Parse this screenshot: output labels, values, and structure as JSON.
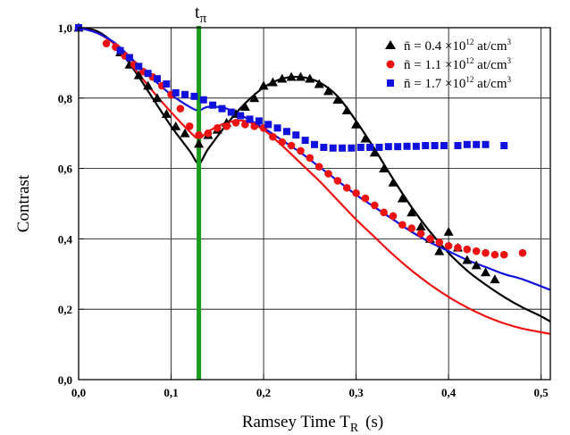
{
  "chart_data": {
    "type": "scatter",
    "xlabel": "Ramsey Time T",
    "xlabel_sub": "R",
    "xlabel_unit": "(s)",
    "ylabel": "Contrast",
    "xlim": [
      0,
      0.51
    ],
    "ylim": [
      0,
      1.0
    ],
    "x_ticks": [
      0.0,
      0.1,
      0.2,
      0.3,
      0.4,
      0.5
    ],
    "x_tick_labels": [
      "0,0",
      "0,1",
      "0,2",
      "0,3",
      "0,4",
      "0,5"
    ],
    "y_ticks": [
      0.0,
      0.2,
      0.4,
      0.6,
      0.8,
      1.0
    ],
    "y_tick_labels": [
      "0,0",
      "0,2",
      "0,4",
      "0,6",
      "0,8",
      "1,0"
    ],
    "grid": true,
    "legend_position": "top-right",
    "annotation": {
      "label": "t",
      "label_sub": "π",
      "x": 0.13,
      "color": "#1a9e1a"
    },
    "series": [
      {
        "name": "n̄ = 0.4 ×10",
        "name_sup": "12",
        "name_unit": " at/cm",
        "name_unit_sup": "3",
        "color": "#000000",
        "marker": "triangle",
        "points": [
          [
            0.0,
            1.0
          ],
          [
            0.045,
            0.93
          ],
          [
            0.055,
            0.895
          ],
          [
            0.065,
            0.865
          ],
          [
            0.075,
            0.835
          ],
          [
            0.085,
            0.8
          ],
          [
            0.095,
            0.755
          ],
          [
            0.105,
            0.72
          ],
          [
            0.115,
            0.7
          ],
          [
            0.13,
            0.67
          ],
          [
            0.14,
            0.695
          ],
          [
            0.15,
            0.71
          ],
          [
            0.16,
            0.73
          ],
          [
            0.17,
            0.755
          ],
          [
            0.18,
            0.775
          ],
          [
            0.19,
            0.8
          ],
          [
            0.2,
            0.835
          ],
          [
            0.21,
            0.845
          ],
          [
            0.22,
            0.855
          ],
          [
            0.23,
            0.86
          ],
          [
            0.24,
            0.86
          ],
          [
            0.25,
            0.855
          ],
          [
            0.26,
            0.84
          ],
          [
            0.27,
            0.82
          ],
          [
            0.28,
            0.795
          ],
          [
            0.29,
            0.765
          ],
          [
            0.3,
            0.725
          ],
          [
            0.31,
            0.685
          ],
          [
            0.32,
            0.645
          ],
          [
            0.33,
            0.6
          ],
          [
            0.34,
            0.56
          ],
          [
            0.35,
            0.515
          ],
          [
            0.36,
            0.475
          ],
          [
            0.37,
            0.435
          ],
          [
            0.38,
            0.4
          ],
          [
            0.39,
            0.365
          ],
          [
            0.4,
            0.42
          ],
          [
            0.41,
            0.375
          ],
          [
            0.42,
            0.34
          ],
          [
            0.43,
            0.325
          ],
          [
            0.44,
            0.305
          ],
          [
            0.45,
            0.285
          ]
        ],
        "fit": [
          [
            0.0,
            1.0
          ],
          [
            0.02,
            0.99
          ],
          [
            0.04,
            0.95
          ],
          [
            0.06,
            0.88
          ],
          [
            0.08,
            0.8
          ],
          [
            0.1,
            0.72
          ],
          [
            0.12,
            0.65
          ],
          [
            0.13,
            0.615
          ],
          [
            0.14,
            0.655
          ],
          [
            0.16,
            0.725
          ],
          [
            0.18,
            0.785
          ],
          [
            0.2,
            0.83
          ],
          [
            0.22,
            0.855
          ],
          [
            0.24,
            0.86
          ],
          [
            0.26,
            0.845
          ],
          [
            0.28,
            0.805
          ],
          [
            0.3,
            0.735
          ],
          [
            0.32,
            0.655
          ],
          [
            0.34,
            0.57
          ],
          [
            0.36,
            0.49
          ],
          [
            0.38,
            0.42
          ],
          [
            0.4,
            0.36
          ],
          [
            0.42,
            0.31
          ],
          [
            0.44,
            0.27
          ],
          [
            0.46,
            0.235
          ],
          [
            0.48,
            0.205
          ],
          [
            0.5,
            0.18
          ],
          [
            0.51,
            0.165
          ]
        ]
      },
      {
        "name": "n̄ = 1.1 ×10",
        "name_sup": "12",
        "name_unit": " at/cm",
        "name_unit_sup": "3",
        "color": "#ee1111",
        "marker": "circle",
        "points": [
          [
            0.0,
            1.0
          ],
          [
            0.03,
            0.955
          ],
          [
            0.04,
            0.945
          ],
          [
            0.05,
            0.92
          ],
          [
            0.06,
            0.895
          ],
          [
            0.07,
            0.875
          ],
          [
            0.08,
            0.86
          ],
          [
            0.09,
            0.835
          ],
          [
            0.1,
            0.81
          ],
          [
            0.11,
            0.77
          ],
          [
            0.12,
            0.72
          ],
          [
            0.13,
            0.695
          ],
          [
            0.14,
            0.7
          ],
          [
            0.15,
            0.715
          ],
          [
            0.16,
            0.72
          ],
          [
            0.17,
            0.73
          ],
          [
            0.18,
            0.725
          ],
          [
            0.19,
            0.72
          ],
          [
            0.2,
            0.715
          ],
          [
            0.21,
            0.69
          ],
          [
            0.22,
            0.675
          ],
          [
            0.23,
            0.665
          ],
          [
            0.24,
            0.65
          ],
          [
            0.25,
            0.63
          ],
          [
            0.26,
            0.605
          ],
          [
            0.27,
            0.585
          ],
          [
            0.28,
            0.565
          ],
          [
            0.29,
            0.545
          ],
          [
            0.3,
            0.53
          ],
          [
            0.31,
            0.515
          ],
          [
            0.32,
            0.495
          ],
          [
            0.33,
            0.475
          ],
          [
            0.34,
            0.465
          ],
          [
            0.35,
            0.44
          ],
          [
            0.36,
            0.43
          ],
          [
            0.37,
            0.415
          ],
          [
            0.38,
            0.4
          ],
          [
            0.39,
            0.39
          ],
          [
            0.4,
            0.38
          ],
          [
            0.41,
            0.375
          ],
          [
            0.42,
            0.37
          ],
          [
            0.43,
            0.365
          ],
          [
            0.44,
            0.36
          ],
          [
            0.45,
            0.355
          ],
          [
            0.46,
            0.355
          ],
          [
            0.48,
            0.36
          ]
        ],
        "fit": [
          [
            0.0,
            1.0
          ],
          [
            0.02,
            0.985
          ],
          [
            0.04,
            0.95
          ],
          [
            0.06,
            0.885
          ],
          [
            0.08,
            0.82
          ],
          [
            0.1,
            0.76
          ],
          [
            0.12,
            0.705
          ],
          [
            0.13,
            0.685
          ],
          [
            0.14,
            0.705
          ],
          [
            0.16,
            0.73
          ],
          [
            0.18,
            0.735
          ],
          [
            0.2,
            0.71
          ],
          [
            0.22,
            0.665
          ],
          [
            0.24,
            0.615
          ],
          [
            0.26,
            0.565
          ],
          [
            0.28,
            0.51
          ],
          [
            0.3,
            0.455
          ],
          [
            0.32,
            0.405
          ],
          [
            0.34,
            0.355
          ],
          [
            0.36,
            0.31
          ],
          [
            0.38,
            0.27
          ],
          [
            0.4,
            0.235
          ],
          [
            0.42,
            0.205
          ],
          [
            0.44,
            0.18
          ],
          [
            0.46,
            0.16
          ],
          [
            0.48,
            0.145
          ],
          [
            0.51,
            0.13
          ]
        ]
      },
      {
        "name": "n̄ = 1.7 ×10",
        "name_sup": "12",
        "name_unit": " at/cm",
        "name_unit_sup": "3",
        "color": "#1111dd",
        "marker": "square",
        "points": [
          [
            0.0,
            1.0
          ],
          [
            0.045,
            0.935
          ],
          [
            0.055,
            0.915
          ],
          [
            0.065,
            0.89
          ],
          [
            0.075,
            0.87
          ],
          [
            0.085,
            0.855
          ],
          [
            0.095,
            0.84
          ],
          [
            0.105,
            0.815
          ],
          [
            0.115,
            0.81
          ],
          [
            0.125,
            0.805
          ],
          [
            0.135,
            0.795
          ],
          [
            0.145,
            0.78
          ],
          [
            0.155,
            0.77
          ],
          [
            0.165,
            0.76
          ],
          [
            0.175,
            0.75
          ],
          [
            0.185,
            0.74
          ],
          [
            0.195,
            0.735
          ],
          [
            0.205,
            0.725
          ],
          [
            0.215,
            0.715
          ],
          [
            0.225,
            0.705
          ],
          [
            0.235,
            0.695
          ],
          [
            0.245,
            0.68
          ],
          [
            0.255,
            0.668
          ],
          [
            0.265,
            0.66
          ],
          [
            0.275,
            0.658
          ],
          [
            0.285,
            0.658
          ],
          [
            0.295,
            0.658
          ],
          [
            0.305,
            0.66
          ],
          [
            0.315,
            0.66
          ],
          [
            0.325,
            0.66
          ],
          [
            0.335,
            0.662
          ],
          [
            0.345,
            0.662
          ],
          [
            0.355,
            0.663
          ],
          [
            0.365,
            0.663
          ],
          [
            0.375,
            0.665
          ],
          [
            0.385,
            0.665
          ],
          [
            0.395,
            0.665
          ],
          [
            0.41,
            0.665
          ],
          [
            0.42,
            0.668
          ],
          [
            0.43,
            0.668
          ],
          [
            0.44,
            0.668
          ],
          [
            0.46,
            0.665
          ]
        ],
        "fit": [
          [
            0.0,
            1.0
          ],
          [
            0.02,
            0.985
          ],
          [
            0.04,
            0.955
          ],
          [
            0.06,
            0.905
          ],
          [
            0.08,
            0.855
          ],
          [
            0.1,
            0.81
          ],
          [
            0.12,
            0.775
          ],
          [
            0.13,
            0.765
          ],
          [
            0.14,
            0.775
          ],
          [
            0.16,
            0.77
          ],
          [
            0.18,
            0.745
          ],
          [
            0.2,
            0.715
          ],
          [
            0.22,
            0.68
          ],
          [
            0.24,
            0.645
          ],
          [
            0.26,
            0.605
          ],
          [
            0.28,
            0.565
          ],
          [
            0.3,
            0.525
          ],
          [
            0.32,
            0.49
          ],
          [
            0.34,
            0.455
          ],
          [
            0.36,
            0.42
          ],
          [
            0.38,
            0.39
          ],
          [
            0.4,
            0.365
          ],
          [
            0.42,
            0.34
          ],
          [
            0.44,
            0.32
          ],
          [
            0.46,
            0.3
          ],
          [
            0.48,
            0.285
          ],
          [
            0.51,
            0.255
          ]
        ]
      }
    ]
  }
}
